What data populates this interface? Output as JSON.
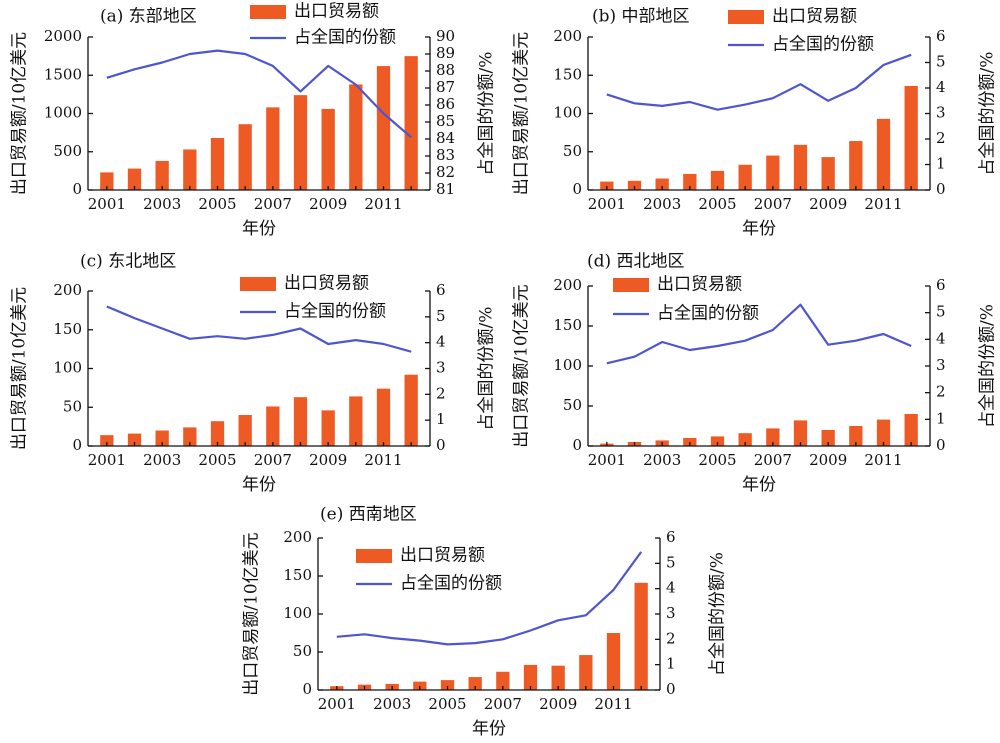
{
  "colors": {
    "bar": "#EE5A24",
    "line": "#4F55D0"
  },
  "legend": {
    "bar_label": "出口贸易额",
    "line_label": "占全国的份额"
  },
  "chart_data": [
    {
      "type": "bar",
      "title": "(a) 东部地区",
      "x": [
        2001,
        2002,
        2003,
        2004,
        2005,
        2006,
        2007,
        2008,
        2009,
        2010,
        2011,
        2012
      ],
      "x_tick_labels": [
        "2001",
        "2003",
        "2005",
        "2007",
        "2009",
        "2011"
      ],
      "xlabel": "年份",
      "ylabel": "出口贸易额/10亿美元",
      "y2label": "占全国的份额/%",
      "ylim": [
        0,
        2000
      ],
      "y_ticks": [
        0,
        500,
        1000,
        1500,
        2000
      ],
      "y2lim": [
        81,
        90
      ],
      "y2_ticks": [
        81,
        82,
        83,
        84,
        85,
        86,
        87,
        88,
        89,
        90
      ],
      "legend_position": "top-center",
      "series": [
        {
          "name": "出口贸易额",
          "type": "bar",
          "axis": "left",
          "values": [
            230,
            280,
            380,
            530,
            680,
            860,
            1080,
            1240,
            1060,
            1380,
            1620,
            1750
          ]
        },
        {
          "name": "占全国的份额",
          "type": "line",
          "axis": "right",
          "values": [
            87.6,
            88.1,
            88.5,
            89.0,
            89.2,
            89.0,
            88.3,
            86.8,
            88.3,
            87.2,
            85.5,
            84.1
          ]
        }
      ]
    },
    {
      "type": "bar",
      "title": "(b) 中部地区",
      "x": [
        2001,
        2002,
        2003,
        2004,
        2005,
        2006,
        2007,
        2008,
        2009,
        2010,
        2011,
        2012
      ],
      "x_tick_labels": [
        "2001",
        "2003",
        "2005",
        "2007",
        "2009",
        "2011"
      ],
      "xlabel": "年份",
      "ylabel": "出口贸易额/10亿美元",
      "y2label": "占全国的份额/%",
      "ylim": [
        0,
        200
      ],
      "y_ticks": [
        0,
        50,
        100,
        150,
        200
      ],
      "y2lim": [
        0,
        6
      ],
      "y2_ticks": [
        0,
        1,
        2,
        3,
        4,
        5,
        6
      ],
      "legend_position": "top-center",
      "series": [
        {
          "name": "出口贸易额",
          "type": "bar",
          "axis": "left",
          "values": [
            11,
            12,
            15,
            21,
            25,
            33,
            45,
            59,
            43,
            64,
            93,
            136
          ]
        },
        {
          "name": "占全国的份额",
          "type": "line",
          "axis": "right",
          "values": [
            3.75,
            3.4,
            3.3,
            3.45,
            3.15,
            3.35,
            3.6,
            4.15,
            3.5,
            4.0,
            4.9,
            5.3
          ]
        }
      ]
    },
    {
      "type": "bar",
      "title": "(c) 东北地区",
      "x": [
        2001,
        2002,
        2003,
        2004,
        2005,
        2006,
        2007,
        2008,
        2009,
        2010,
        2011,
        2012
      ],
      "x_tick_labels": [
        "2001",
        "2003",
        "2005",
        "2007",
        "2009",
        "2011"
      ],
      "xlabel": "年份",
      "ylabel": "出口贸易额/10亿美元",
      "y2label": "占全国的份额/%",
      "ylim": [
        0,
        200
      ],
      "y_ticks": [
        0,
        50,
        100,
        150,
        200
      ],
      "y2lim": [
        0,
        6
      ],
      "y2_ticks": [
        0,
        1,
        2,
        3,
        4,
        5,
        6
      ],
      "legend_position": "top-right",
      "series": [
        {
          "name": "出口贸易额",
          "type": "bar",
          "axis": "left",
          "values": [
            14,
            16,
            20,
            24,
            32,
            40,
            51,
            63,
            46,
            64,
            74,
            92
          ]
        },
        {
          "name": "占全国的份额",
          "type": "line",
          "axis": "right",
          "values": [
            5.4,
            4.95,
            4.55,
            4.15,
            4.25,
            4.15,
            4.3,
            4.55,
            3.95,
            4.1,
            3.95,
            3.65
          ]
        }
      ]
    },
    {
      "type": "bar",
      "title": "(d) 西北地区",
      "x": [
        2001,
        2002,
        2003,
        2004,
        2005,
        2006,
        2007,
        2008,
        2009,
        2010,
        2011,
        2012
      ],
      "x_tick_labels": [
        "2001",
        "2003",
        "2005",
        "2007",
        "2009",
        "2011"
      ],
      "xlabel": "年份",
      "ylabel": "出口贸易额/10亿美元",
      "y2label": "占全国的份额/%",
      "ylim": [
        0,
        200
      ],
      "y_ticks": [
        0,
        50,
        100,
        150,
        200
      ],
      "y2lim": [
        0,
        6
      ],
      "y2_ticks": [
        0,
        1,
        2,
        3,
        4,
        5,
        6
      ],
      "legend_position": "top-center",
      "series": [
        {
          "name": "出口贸易额",
          "type": "bar",
          "axis": "left",
          "values": [
            3,
            5,
            7,
            10,
            12,
            16,
            22,
            32,
            20,
            25,
            33,
            40
          ]
        },
        {
          "name": "占全国的份额",
          "type": "line",
          "axis": "right",
          "values": [
            3.1,
            3.35,
            3.9,
            3.6,
            3.75,
            3.95,
            4.35,
            5.3,
            3.8,
            3.95,
            4.2,
            3.75
          ]
        }
      ]
    },
    {
      "type": "bar",
      "title": "(e) 西南地区",
      "x": [
        2001,
        2002,
        2003,
        2004,
        2005,
        2006,
        2007,
        2008,
        2009,
        2010,
        2011,
        2012
      ],
      "x_tick_labels": [
        "2001",
        "2003",
        "2005",
        "2007",
        "2009",
        "2011"
      ],
      "xlabel": "年份",
      "ylabel": "出口贸易额/10亿美元",
      "y2label": "占全国的份额/%",
      "ylim": [
        0,
        200
      ],
      "y_ticks": [
        0,
        50,
        100,
        150,
        200
      ],
      "y2lim": [
        0,
        6
      ],
      "y2_ticks": [
        0,
        1,
        2,
        3,
        4,
        5,
        6
      ],
      "legend_position": "top-left",
      "series": [
        {
          "name": "出口贸易额",
          "type": "bar",
          "axis": "left",
          "values": [
            5,
            7,
            8,
            11,
            13,
            17,
            24,
            33,
            32,
            46,
            75,
            141
          ]
        },
        {
          "name": "占全国的份额",
          "type": "line",
          "axis": "right",
          "values": [
            2.1,
            2.2,
            2.05,
            1.95,
            1.8,
            1.85,
            2.0,
            2.35,
            2.75,
            2.95,
            3.95,
            5.45
          ]
        }
      ]
    }
  ]
}
